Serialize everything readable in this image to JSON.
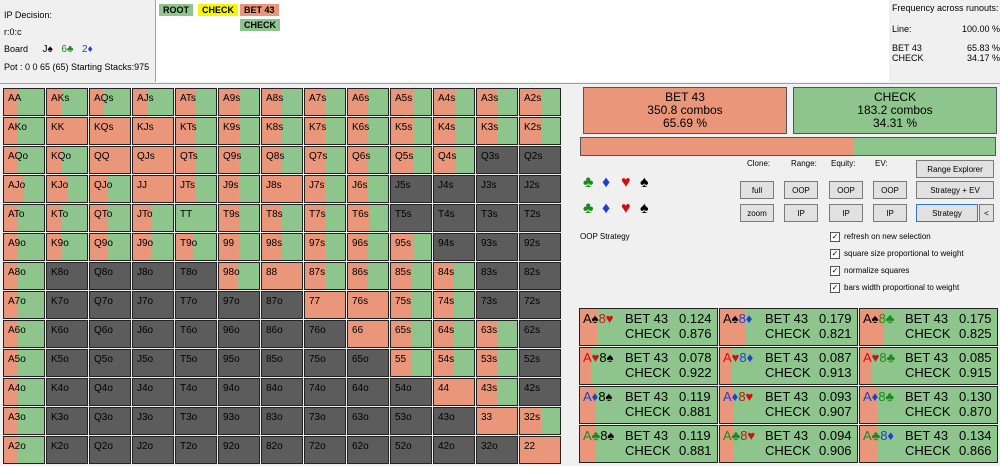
{
  "info": {
    "title": "IP Decision:",
    "line": "r:0:c",
    "board_label": "Board",
    "board": [
      {
        "t": "J♠",
        "c": "#000"
      },
      {
        "t": "6♣",
        "c": "#1a8a1a"
      },
      {
        "t": "2♦",
        "c": "#1f3fd0"
      }
    ],
    "pot": "Pot : 0 0 65 (65) Starting Stacks:975"
  },
  "tree": {
    "root": "ROOT",
    "check": "CHECK",
    "bet": "BET 43",
    "check2": "CHECK"
  },
  "freq": {
    "title": "Frequency across runouts:",
    "line_label": "Line:",
    "line_val": "100.00 %",
    "rows": [
      {
        "name": "BET 43",
        "val": "65.83 %"
      },
      {
        "name": "CHECK",
        "val": "34.17 %"
      }
    ]
  },
  "colors": {
    "bet": "#e9967a",
    "check": "#8dc58d",
    "none": "#5c5c5c"
  },
  "grid": [
    [
      [
        "AA",
        0.35
      ],
      [
        "AKs",
        0.35
      ],
      [
        "AQs",
        0.35
      ],
      [
        "AJs",
        0.35
      ],
      [
        "ATs",
        0.5
      ],
      [
        "A9s",
        0.5
      ],
      [
        "A8s",
        0.5
      ],
      [
        "A7s",
        0.5
      ],
      [
        "A6s",
        0.5
      ],
      [
        "A5s",
        0.55
      ],
      [
        "A4s",
        0.55
      ],
      [
        "A3s",
        0.5
      ],
      [
        "A2s",
        0.55
      ]
    ],
    [
      [
        "AKo",
        0.35
      ],
      [
        "KK",
        1
      ],
      [
        "KQs",
        1
      ],
      [
        "KJs",
        1
      ],
      [
        "KTs",
        0.5
      ],
      [
        "K9s",
        0.5
      ],
      [
        "K8s",
        0.5
      ],
      [
        "K7s",
        0.5
      ],
      [
        "K6s",
        0.5
      ],
      [
        "K5s",
        0.55
      ],
      [
        "K4s",
        0.55
      ],
      [
        "K3s",
        0.5
      ],
      [
        "K2s",
        0.55
      ]
    ],
    [
      [
        "AQo",
        0.35
      ],
      [
        "KQo",
        0.35
      ],
      [
        "QQ",
        1
      ],
      [
        "QJs",
        1
      ],
      [
        "QTs",
        0.5
      ],
      [
        "Q9s",
        0.5
      ],
      [
        "Q8s",
        0.5
      ],
      [
        "Q7s",
        0.5
      ],
      [
        "Q6s",
        0.5
      ],
      [
        "Q5s",
        0.55
      ],
      [
        "Q4s",
        0.55
      ],
      [
        "Q3s",
        -1
      ],
      [
        "Q2s",
        -1
      ]
    ],
    [
      [
        "AJo",
        0.5
      ],
      [
        "KJo",
        0.5
      ],
      [
        "QJo",
        0.45
      ],
      [
        "JJ",
        1
      ],
      [
        "JTs",
        0.5
      ],
      [
        "J9s",
        0.5
      ],
      [
        "J8s",
        1
      ],
      [
        "J7s",
        0.5
      ],
      [
        "J6s",
        0.5
      ],
      [
        "J5s",
        -1
      ],
      [
        "J4s",
        -1
      ],
      [
        "J3s",
        -1
      ],
      [
        "J2s",
        -1
      ]
    ],
    [
      [
        "ATo",
        0.35
      ],
      [
        "KTo",
        0.35
      ],
      [
        "QTo",
        0.45
      ],
      [
        "JTo",
        0.45
      ],
      [
        "TT",
        0
      ],
      [
        "T9s",
        0.5
      ],
      [
        "T8s",
        0.5
      ],
      [
        "T7s",
        0.5
      ],
      [
        "T6s",
        0.55
      ],
      [
        "T5s",
        -1
      ],
      [
        "T4s",
        -1
      ],
      [
        "T3s",
        -1
      ],
      [
        "T2s",
        -1
      ]
    ],
    [
      [
        "A9o",
        0.35
      ],
      [
        "K9o",
        0.35
      ],
      [
        "Q9o",
        0.45
      ],
      [
        "J9o",
        0.45
      ],
      [
        "T9o",
        0.45
      ],
      [
        "99",
        0.5
      ],
      [
        "98s",
        0.5
      ],
      [
        "97s",
        0.5
      ],
      [
        "96s",
        0.5
      ],
      [
        "95s",
        0.55
      ],
      [
        "94s",
        -1
      ],
      [
        "93s",
        -1
      ],
      [
        "92s",
        -1
      ]
    ],
    [
      [
        "A8o",
        0.35
      ],
      [
        "K8o",
        -1
      ],
      [
        "Q8o",
        -1
      ],
      [
        "J8o",
        -1
      ],
      [
        "T8o",
        -1
      ],
      [
        "98o",
        0.45
      ],
      [
        "88",
        1
      ],
      [
        "87s",
        0.5
      ],
      [
        "86s",
        0.5
      ],
      [
        "85s",
        0.5
      ],
      [
        "84s",
        0.5
      ],
      [
        "83s",
        -1
      ],
      [
        "82s",
        -1
      ]
    ],
    [
      [
        "A7o",
        0.35
      ],
      [
        "K7o",
        -1
      ],
      [
        "Q7o",
        -1
      ],
      [
        "J7o",
        -1
      ],
      [
        "T7o",
        -1
      ],
      [
        "97o",
        -1
      ],
      [
        "87o",
        -1
      ],
      [
        "77",
        1
      ],
      [
        "76s",
        1
      ],
      [
        "75s",
        0.5
      ],
      [
        "74s",
        0.5
      ],
      [
        "73s",
        -1
      ],
      [
        "72s",
        -1
      ]
    ],
    [
      [
        "A6o",
        0.35
      ],
      [
        "K6o",
        -1
      ],
      [
        "Q6o",
        -1
      ],
      [
        "J6o",
        -1
      ],
      [
        "T6o",
        -1
      ],
      [
        "96o",
        -1
      ],
      [
        "86o",
        -1
      ],
      [
        "76o",
        -1
      ],
      [
        "66",
        1
      ],
      [
        "65s",
        0.5
      ],
      [
        "64s",
        0.5
      ],
      [
        "63s",
        0.5
      ],
      [
        "62s",
        -1
      ]
    ],
    [
      [
        "A5o",
        0.35
      ],
      [
        "K5o",
        -1
      ],
      [
        "Q5o",
        -1
      ],
      [
        "J5o",
        -1
      ],
      [
        "T5o",
        -1
      ],
      [
        "95o",
        -1
      ],
      [
        "85o",
        -1
      ],
      [
        "75o",
        -1
      ],
      [
        "65o",
        -1
      ],
      [
        "55",
        0.5
      ],
      [
        "54s",
        0.5
      ],
      [
        "53s",
        0.5
      ],
      [
        "52s",
        -1
      ]
    ],
    [
      [
        "A4o",
        0.35
      ],
      [
        "K4o",
        -1
      ],
      [
        "Q4o",
        -1
      ],
      [
        "J4o",
        -1
      ],
      [
        "T4o",
        -1
      ],
      [
        "94o",
        -1
      ],
      [
        "84o",
        -1
      ],
      [
        "74o",
        -1
      ],
      [
        "64o",
        -1
      ],
      [
        "54o",
        -1
      ],
      [
        "44",
        1
      ],
      [
        "43s",
        0.5
      ],
      [
        "42s",
        -1
      ]
    ],
    [
      [
        "A3o",
        0.35
      ],
      [
        "K3o",
        -1
      ],
      [
        "Q3o",
        -1
      ],
      [
        "J3o",
        -1
      ],
      [
        "T3o",
        -1
      ],
      [
        "93o",
        -1
      ],
      [
        "83o",
        -1
      ],
      [
        "73o",
        -1
      ],
      [
        "63o",
        -1
      ],
      [
        "53o",
        -1
      ],
      [
        "43o",
        -1
      ],
      [
        "33",
        1
      ],
      [
        "32s",
        0.55
      ]
    ],
    [
      [
        "A2o",
        0.35
      ],
      [
        "K2o",
        -1
      ],
      [
        "Q2o",
        -1
      ],
      [
        "J2o",
        -1
      ],
      [
        "T2o",
        -1
      ],
      [
        "92o",
        -1
      ],
      [
        "82o",
        -1
      ],
      [
        "72o",
        -1
      ],
      [
        "62o",
        -1
      ],
      [
        "52o",
        -1
      ],
      [
        "42o",
        -1
      ],
      [
        "32o",
        -1
      ],
      [
        "22",
        1
      ]
    ]
  ],
  "summary": {
    "bet": {
      "name": "BET 43",
      "combos": "350.8 combos",
      "pct": "65.69 %"
    },
    "check": {
      "name": "CHECK",
      "combos": "183.2 combos",
      "pct": "34.31 %"
    },
    "bar_bet_fraction": 0.6569
  },
  "controls": {
    "clone": "Clone:",
    "range": "Range:",
    "equity": "Equity:",
    "ev": "EV:",
    "full": "full",
    "zoom": "zoom",
    "oop": "OOP",
    "ip": "IP",
    "range_explorer": "Range Explorer",
    "strategy_ev": "Strategy + EV",
    "strategy": "Strategy",
    "arrow": "<",
    "oop_strategy": "OOP Strategy",
    "suits": [
      {
        "t": "♣",
        "c": "#1a8a1a"
      },
      {
        "t": "♦",
        "c": "#1f3fd0"
      },
      {
        "t": "♥",
        "c": "#d01010"
      },
      {
        "t": "♠",
        "c": "#000"
      }
    ],
    "checks": [
      "refresh on new selection",
      "square size proportional to weight",
      "normalize squares",
      "bars width proportional to weight"
    ],
    "check_mark": "✓"
  },
  "combos": [
    [
      {
        "cards": [
          [
            "A♠",
            "#000"
          ],
          [
            "8♥",
            "#d01010"
          ]
        ],
        "bet": "0.124",
        "check": "0.876"
      },
      {
        "cards": [
          [
            "A♠",
            "#000"
          ],
          [
            "8♦",
            "#1f3fd0"
          ]
        ],
        "bet": "0.179",
        "check": "0.821"
      },
      {
        "cards": [
          [
            "A♠",
            "#000"
          ],
          [
            "8♣",
            "#1a8a1a"
          ]
        ],
        "bet": "0.175",
        "check": "0.825"
      }
    ],
    [
      {
        "cards": [
          [
            "A♥",
            "#d01010"
          ],
          [
            "8♠",
            "#000"
          ]
        ],
        "bet": "0.078",
        "check": "0.922"
      },
      {
        "cards": [
          [
            "A♥",
            "#d01010"
          ],
          [
            "8♦",
            "#1f3fd0"
          ]
        ],
        "bet": "0.087",
        "check": "0.913"
      },
      {
        "cards": [
          [
            "A♥",
            "#d01010"
          ],
          [
            "8♣",
            "#1a8a1a"
          ]
        ],
        "bet": "0.085",
        "check": "0.915"
      }
    ],
    [
      {
        "cards": [
          [
            "A♦",
            "#1f3fd0"
          ],
          [
            "8♠",
            "#000"
          ]
        ],
        "bet": "0.119",
        "check": "0.881"
      },
      {
        "cards": [
          [
            "A♦",
            "#1f3fd0"
          ],
          [
            "8♥",
            "#d01010"
          ]
        ],
        "bet": "0.093",
        "check": "0.907"
      },
      {
        "cards": [
          [
            "A♦",
            "#1f3fd0"
          ],
          [
            "8♣",
            "#1a8a1a"
          ]
        ],
        "bet": "0.130",
        "check": "0.870"
      }
    ],
    [
      {
        "cards": [
          [
            "A♣",
            "#1a8a1a"
          ],
          [
            "8♠",
            "#000"
          ]
        ],
        "bet": "0.119",
        "check": "0.881"
      },
      {
        "cards": [
          [
            "A♣",
            "#1a8a1a"
          ],
          [
            "8♥",
            "#d01010"
          ]
        ],
        "bet": "0.094",
        "check": "0.906"
      },
      {
        "cards": [
          [
            "A♣",
            "#1a8a1a"
          ],
          [
            "8♦",
            "#1f3fd0"
          ]
        ],
        "bet": "0.134",
        "check": "0.866"
      }
    ]
  ],
  "combo_labels": {
    "bet": "BET 43",
    "check": "CHECK"
  }
}
